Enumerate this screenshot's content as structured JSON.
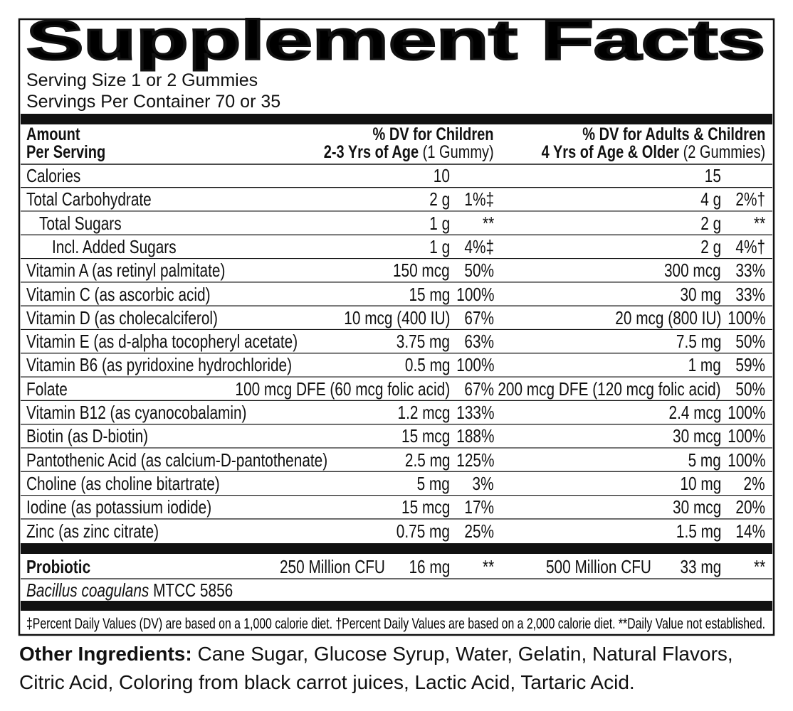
{
  "title": "Supplement Facts",
  "serving_size": "Serving Size 1 or 2 Gummies",
  "servings_per_container": "Servings Per Container 70 or 35",
  "header": {
    "amount": "Amount",
    "per_serving": "Per Serving",
    "children_title": "% DV for Children",
    "children_age": "2-3 Yrs of Age",
    "children_qty": "(1 Gummy)",
    "adults_title": "% DV for Adults & Children",
    "adults_age": "4 Yrs of Age & Older",
    "adults_qty": "(2 Gummies)"
  },
  "rows": [
    {
      "name": "Calories",
      "child_amount": "10",
      "adult_amount": "15"
    },
    {
      "name": "Total Carbohydrate",
      "child_amount": "2 g",
      "child_dv": "1%‡",
      "adult_amount": "4 g",
      "adult_dv": "2%†"
    },
    {
      "name": "Total Sugars",
      "child_amount": "1 g",
      "child_dv": "**",
      "adult_amount": "2 g",
      "adult_dv": "**"
    },
    {
      "name": "Incl. Added Sugars",
      "child_amount": "1 g",
      "child_dv": "4%‡",
      "adult_amount": "2 g",
      "adult_dv": "4%†"
    },
    {
      "name": "Vitamin A (as retinyl palmitate)",
      "child_amount": "150 mcg",
      "child_dv": "50%",
      "adult_amount": "300 mcg",
      "adult_dv": "33%"
    },
    {
      "name": "Vitamin C (as ascorbic acid)",
      "child_amount": "15 mg",
      "child_dv": "100%",
      "adult_amount": "30 mg",
      "adult_dv": "33%"
    },
    {
      "name": "Vitamin D (as cholecalciferol)",
      "child_amount": "10 mcg (400 IU)",
      "child_dv": "67%",
      "adult_amount": "20 mcg (800 IU)",
      "adult_dv": "100%"
    },
    {
      "name": "Vitamin E (as d-alpha tocopheryl acetate)",
      "child_amount": "3.75 mg",
      "child_dv": "63%",
      "adult_amount": "7.5 mg",
      "adult_dv": "50%"
    },
    {
      "name": "Vitamin B6 (as pyridoxine hydrochloride)",
      "child_amount": "0.5 mg",
      "child_dv": "100%",
      "adult_amount": "1 mg",
      "adult_dv": "59%"
    },
    {
      "name": "Folate",
      "child_amount": "100 mcg DFE (60 mcg folic acid)",
      "child_dv": "67%",
      "adult_amount": "200 mcg DFE (120 mcg folic acid)",
      "adult_dv": "50%"
    },
    {
      "name": "Vitamin B12 (as cyanocobalamin)",
      "child_amount": "1.2 mcg",
      "child_dv": "133%",
      "adult_amount": "2.4 mcg",
      "adult_dv": "100%"
    },
    {
      "name": "Biotin (as D-biotin)",
      "child_amount": "15 mcg",
      "child_dv": "188%",
      "adult_amount": "30 mcg",
      "adult_dv": "100%"
    },
    {
      "name": "Pantothenic Acid (as calcium-D-pantothenate)",
      "child_amount": "2.5 mg",
      "child_dv": "125%",
      "adult_amount": "5 mg",
      "adult_dv": "100%"
    },
    {
      "name": "Choline (as choline bitartrate)",
      "child_amount": "5 mg",
      "child_dv": "3%",
      "adult_amount": "10 mg",
      "adult_dv": "2%"
    },
    {
      "name": "Iodine (as potassium iodide)",
      "child_amount": "15 mcg",
      "child_dv": "17%",
      "adult_amount": "30 mcg",
      "adult_dv": "20%"
    },
    {
      "name": "Zinc (as zinc citrate)",
      "child_amount": "0.75 mg",
      "child_dv": "25%",
      "adult_amount": "1.5 mg",
      "adult_dv": "14%"
    }
  ],
  "probiotic": {
    "name": "Probiotic",
    "child_count": "250 Million CFU",
    "child_amount": "16 mg",
    "child_dv": "**",
    "adult_count": "500 Million CFU",
    "adult_amount": "33 mg",
    "adult_dv": "**",
    "strain": "Bacillus coagulans",
    "strain_id": "MTCC 5856"
  },
  "footnote": "‡Percent Daily Values (DV) are based on a 1,000 calorie diet. †Percent Daily Values are based on a 2,000 calorie diet. **Daily Value not established.",
  "other_ingredients": {
    "label": "Other Ingredients:",
    "text": "Cane Sugar, Glucose Syrup, Water, Gelatin, Natural Flavors, Citric Acid, Coloring from black carrot juices, Lactic Acid, Tartaric Acid."
  }
}
